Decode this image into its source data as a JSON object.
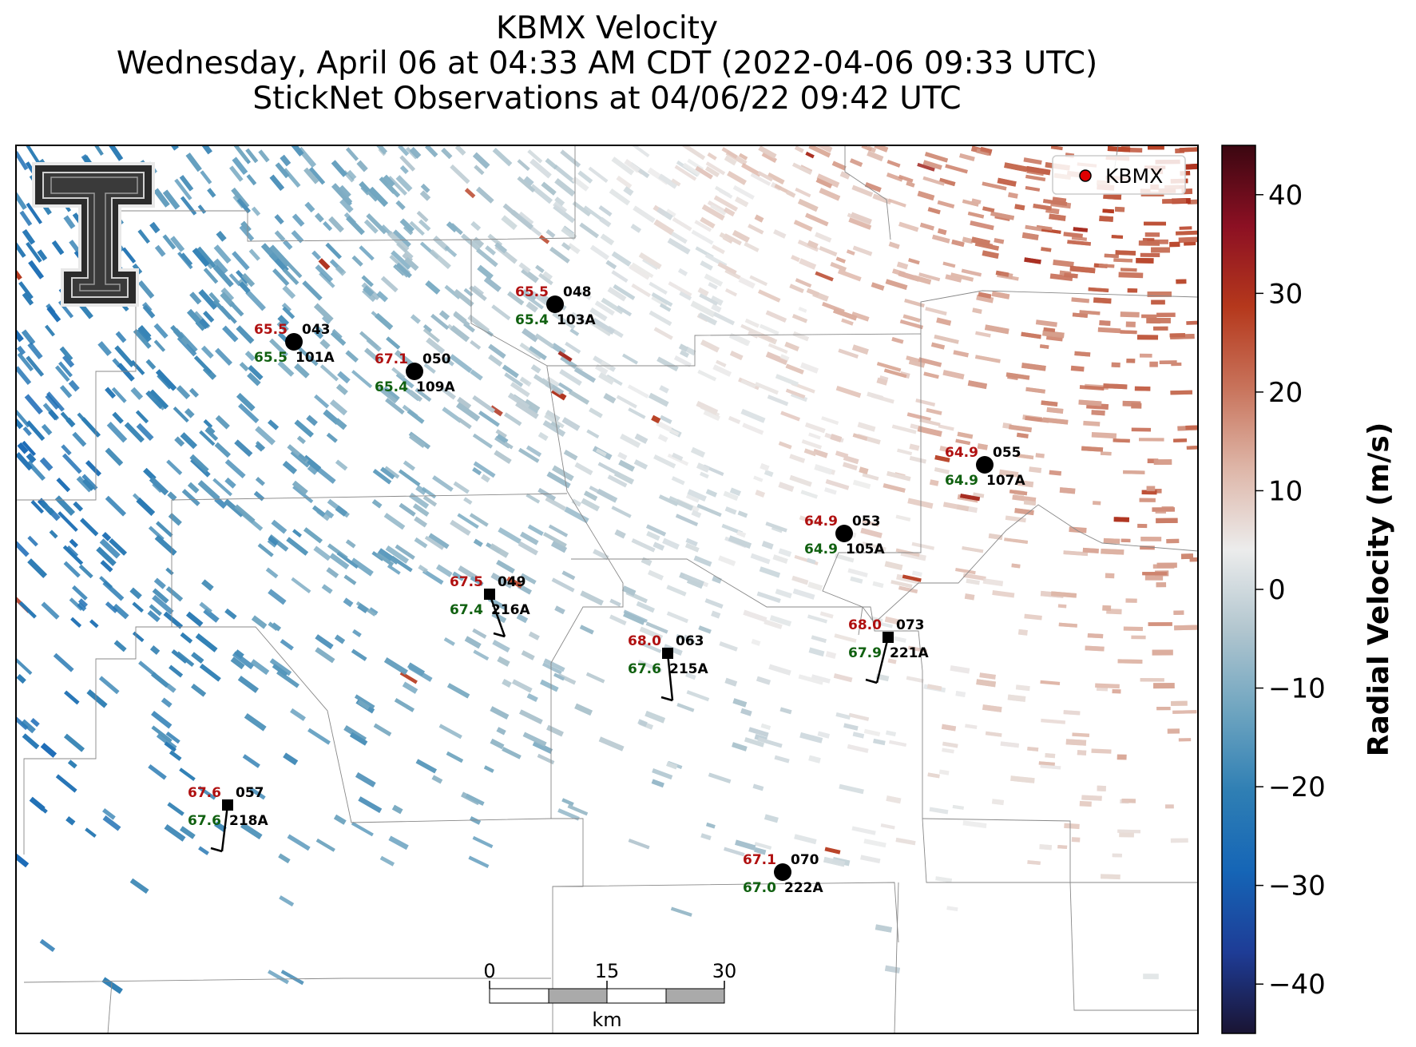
{
  "title": {
    "line1": "KBMX Velocity",
    "line2": "Wednesday, April 06 at 04:33 AM CDT (2022-04-06 09:33 UTC)",
    "line3": "StickNet Observations at 04/06/22 09:42 UTC"
  },
  "legend": {
    "label": "KBMX",
    "marker_color": "#e00000",
    "placement": "top-right"
  },
  "logo": {
    "name": "texas-tech-double-t-logo",
    "colors": [
      "#2b2b2b",
      "#e8e8e8"
    ]
  },
  "colorbar": {
    "label": "Radial Velocity (m/s)",
    "range": [
      -45,
      45
    ],
    "ticks": [
      {
        "value": 40,
        "label": "40"
      },
      {
        "value": 30,
        "label": "30"
      },
      {
        "value": 20,
        "label": "20"
      },
      {
        "value": 10,
        "label": "10"
      },
      {
        "value": 0,
        "label": "0"
      },
      {
        "value": -10,
        "label": "−10"
      },
      {
        "value": -20,
        "label": "−20"
      },
      {
        "value": -30,
        "label": "−30"
      },
      {
        "value": -40,
        "label": "−40"
      }
    ],
    "colors": [
      "#1a1433",
      "#1e3c96",
      "#1565b6",
      "#2f7fb4",
      "#6fa5c0",
      "#b2c6cf",
      "#ececec",
      "#deb6a8",
      "#c8735b",
      "#b5381c",
      "#8c1023",
      "#3b0711"
    ]
  },
  "scale_bar": {
    "ticks": [
      "0",
      "15",
      "30"
    ],
    "unit": "km"
  },
  "label_colors": {
    "temperature": "#b01010",
    "dewpoint": "#106010",
    "id": "#000000"
  },
  "stations": [
    {
      "id": "043",
      "probe": "101A",
      "temp": "65.5",
      "dew": "65.5",
      "marker": "circle"
    },
    {
      "id": "050",
      "probe": "109A",
      "temp": "67.1",
      "dew": "65.4",
      "marker": "circle"
    },
    {
      "id": "048",
      "probe": "103A",
      "temp": "65.5",
      "dew": "65.4",
      "marker": "circle"
    },
    {
      "id": "055",
      "probe": "107A",
      "temp": "64.9",
      "dew": "64.9",
      "marker": "circle"
    },
    {
      "id": "053",
      "probe": "105A",
      "temp": "64.9",
      "dew": "64.9",
      "marker": "circle"
    },
    {
      "id": "049",
      "probe": "216A",
      "temp": "67.5",
      "dew": "67.4",
      "marker": "square"
    },
    {
      "id": "063",
      "probe": "215A",
      "temp": "68.0",
      "dew": "67.6",
      "marker": "square"
    },
    {
      "id": "073",
      "probe": "221A",
      "temp": "68.0",
      "dew": "67.9",
      "marker": "square"
    },
    {
      "id": "057",
      "probe": "218A",
      "temp": "67.6",
      "dew": "67.6",
      "marker": "square"
    },
    {
      "id": "070",
      "probe": "222A",
      "temp": "67.1",
      "dew": "67.0",
      "marker": "circle"
    }
  ]
}
